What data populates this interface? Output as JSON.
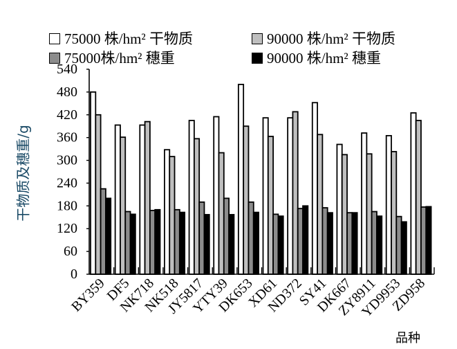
{
  "chart_data": {
    "type": "bar",
    "title": "",
    "xlabel": "品种",
    "ylabel": "干物质及穗重/g",
    "ylim": [
      0,
      540
    ],
    "yticks": [
      0,
      60,
      120,
      180,
      240,
      300,
      360,
      420,
      480,
      540
    ],
    "grid": false,
    "legend_position": "top",
    "categories": [
      "BY359",
      "DF5",
      "NK718",
      "NK518",
      "JY5817",
      "YTY39",
      "DK653",
      "XD61",
      "ND372",
      "SY41",
      "DK667",
      "ZY8911",
      "YD9953",
      "ZD958"
    ],
    "series": [
      {
        "name": "75000 株/hm² 干物质",
        "color": "#ffffff",
        "values": [
          480,
          393,
          393,
          328,
          405,
          415,
          500,
          412,
          412,
          452,
          342,
          372,
          365,
          425
        ]
      },
      {
        "name": "90000 株/hm² 干物质",
        "color": "#bfbfbf",
        "values": [
          420,
          361,
          402,
          310,
          357,
          320,
          390,
          363,
          428,
          368,
          315,
          317,
          323,
          405
        ]
      },
      {
        "name": "75000株/hm² 穗重",
        "color": "#8c8c8c",
        "values": [
          225,
          165,
          168,
          170,
          190,
          200,
          190,
          158,
          173,
          175,
          162,
          165,
          152,
          177
        ]
      },
      {
        "name": "90000 株/hm² 穗重",
        "color": "#000000",
        "values": [
          200,
          158,
          170,
          163,
          157,
          157,
          163,
          153,
          180,
          162,
          162,
          153,
          138,
          178
        ]
      }
    ]
  }
}
